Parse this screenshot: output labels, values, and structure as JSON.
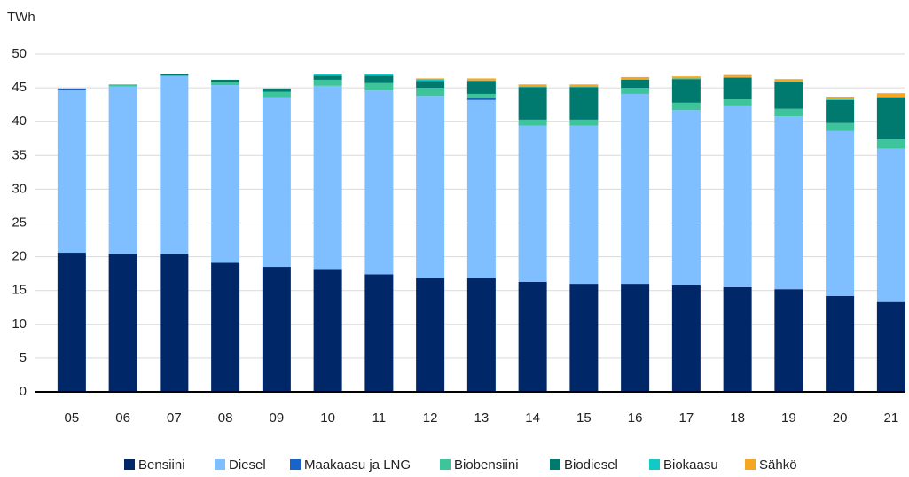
{
  "chart_data": {
    "type": "stacked_bar",
    "y_label": "TWh",
    "categories": [
      "05",
      "06",
      "07",
      "08",
      "09",
      "10",
      "11",
      "12",
      "13",
      "14",
      "15",
      "16",
      "17",
      "18",
      "19",
      "20",
      "21"
    ],
    "series": [
      {
        "name": "Bensiini",
        "color": "#002868",
        "values": [
          20.6,
          20.4,
          20.4,
          19.1,
          18.5,
          18.2,
          17.4,
          16.9,
          16.9,
          16.3,
          16.0,
          16.0,
          15.8,
          15.5,
          15.2,
          14.2,
          13.3
        ]
      },
      {
        "name": "Diesel",
        "color": "#7fbfff",
        "values": [
          24.1,
          24.8,
          26.4,
          26.3,
          25.1,
          27.1,
          27.2,
          26.9,
          26.3,
          23.1,
          23.4,
          28.1,
          25.9,
          26.9,
          25.6,
          24.4,
          22.7
        ]
      },
      {
        "name": "Maakaasu ja LNG",
        "color": "#1a63c8",
        "values": [
          0.2,
          0,
          0,
          0,
          0,
          0,
          0,
          0,
          0.3,
          0,
          0,
          0,
          0,
          0,
          0,
          0,
          0
        ]
      },
      {
        "name": "Biobensiini",
        "color": "#3ec49a",
        "values": [
          0,
          0.3,
          0,
          0.5,
          0.8,
          0.9,
          1.1,
          1.2,
          0.6,
          0.9,
          0.9,
          0.9,
          1.1,
          0.9,
          1.1,
          1.2,
          1.4
        ]
      },
      {
        "name": "Biodiesel",
        "color": "#007a6e",
        "values": [
          0,
          0,
          0.3,
          0.3,
          0.5,
          0.6,
          1.1,
          1.0,
          1.9,
          4.8,
          4.8,
          1.2,
          3.5,
          3.2,
          3.9,
          3.4,
          6.2
        ]
      },
      {
        "name": "Biokaasu",
        "color": "#14c8c8",
        "values": [
          0,
          0,
          0,
          0,
          0,
          0.3,
          0.3,
          0.3,
          0.1,
          0.1,
          0.1,
          0.1,
          0.1,
          0.1,
          0.1,
          0.1,
          0.1
        ]
      },
      {
        "name": "Sähkö",
        "color": "#f5a623",
        "values": [
          0,
          0,
          0,
          0,
          0,
          0,
          0,
          0.1,
          0.3,
          0.3,
          0.3,
          0.3,
          0.3,
          0.3,
          0.4,
          0.4,
          0.5
        ]
      }
    ],
    "ylim": [
      0,
      50
    ],
    "yticks": [
      0,
      5,
      10,
      15,
      20,
      25,
      30,
      35,
      40,
      45,
      50
    ],
    "grid": true,
    "legend": "bottom"
  }
}
